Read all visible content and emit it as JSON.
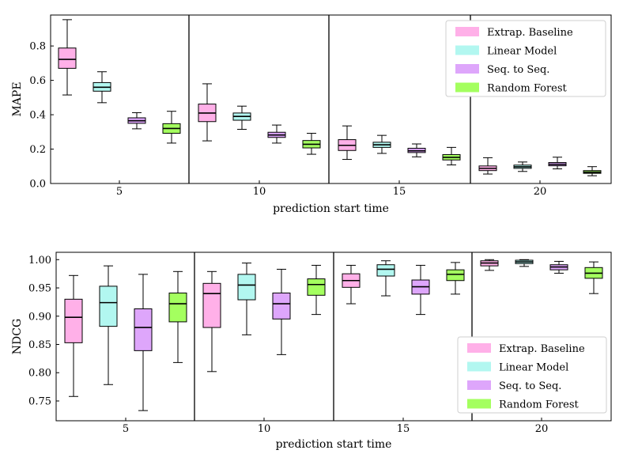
{
  "chart_data": [
    {
      "type": "box",
      "xlabel": "prediction start time",
      "ylabel": "MAPE",
      "ylim": [
        0.0,
        0.98
      ],
      "yticks": [
        0.0,
        0.2,
        0.4,
        0.6,
        0.8
      ],
      "ytick_labels": [
        "0.0",
        "0.2",
        "0.4",
        "0.6",
        "0.8"
      ],
      "groups": [
        "5",
        "10",
        "15",
        "20"
      ],
      "legend": {
        "position": "top-right"
      },
      "series": [
        {
          "name": "Extrap. Baseline",
          "color": "#ffb0e8",
          "boxes": [
            {
              "whislo": 0.515,
              "q1": 0.67,
              "med": 0.722,
              "q3": 0.788,
              "whishi": 0.953
            },
            {
              "whislo": 0.248,
              "q1": 0.36,
              "med": 0.41,
              "q3": 0.462,
              "whishi": 0.58
            },
            {
              "whislo": 0.14,
              "q1": 0.192,
              "med": 0.222,
              "q3": 0.255,
              "whishi": 0.335
            },
            {
              "whislo": 0.055,
              "q1": 0.075,
              "med": 0.088,
              "q3": 0.102,
              "whishi": 0.15
            }
          ]
        },
        {
          "name": "Linear Model",
          "color": "#b2f7f0",
          "boxes": [
            {
              "whislo": 0.47,
              "q1": 0.537,
              "med": 0.56,
              "q3": 0.587,
              "whishi": 0.65
            },
            {
              "whislo": 0.315,
              "q1": 0.368,
              "med": 0.39,
              "q3": 0.41,
              "whishi": 0.45
            },
            {
              "whislo": 0.175,
              "q1": 0.21,
              "med": 0.225,
              "q3": 0.24,
              "whishi": 0.28
            },
            {
              "whislo": 0.07,
              "q1": 0.088,
              "med": 0.097,
              "q3": 0.107,
              "whishi": 0.125
            }
          ]
        },
        {
          "name": "Seq. to Seq.",
          "color": "#dea6fb",
          "boxes": [
            {
              "whislo": 0.318,
              "q1": 0.35,
              "med": 0.365,
              "q3": 0.382,
              "whishi": 0.412
            },
            {
              "whislo": 0.235,
              "q1": 0.268,
              "med": 0.282,
              "q3": 0.298,
              "whishi": 0.34
            },
            {
              "whislo": 0.155,
              "q1": 0.18,
              "med": 0.19,
              "q3": 0.205,
              "whishi": 0.23
            },
            {
              "whislo": 0.085,
              "q1": 0.103,
              "med": 0.112,
              "q3": 0.122,
              "whishi": 0.153
            }
          ]
        },
        {
          "name": "Random Forest",
          "color": "#a4ff5f",
          "boxes": [
            {
              "whislo": 0.235,
              "q1": 0.292,
              "med": 0.32,
              "q3": 0.348,
              "whishi": 0.42
            },
            {
              "whislo": 0.17,
              "q1": 0.207,
              "med": 0.228,
              "q3": 0.25,
              "whishi": 0.292
            },
            {
              "whislo": 0.108,
              "q1": 0.137,
              "med": 0.152,
              "q3": 0.168,
              "whishi": 0.21
            },
            {
              "whislo": 0.045,
              "q1": 0.059,
              "med": 0.066,
              "q3": 0.075,
              "whishi": 0.098
            }
          ]
        }
      ]
    },
    {
      "type": "box",
      "xlabel": "prediction start time",
      "ylabel": "NDCG",
      "ylim": [
        0.715,
        1.013
      ],
      "yticks": [
        0.75,
        0.8,
        0.85,
        0.9,
        0.95,
        1.0
      ],
      "ytick_labels": [
        "0.75",
        "0.80",
        "0.85",
        "0.90",
        "0.95",
        "1.00"
      ],
      "groups": [
        "5",
        "10",
        "15",
        "20"
      ],
      "legend": {
        "position": "lower-right"
      },
      "series": [
        {
          "name": "Extrap. Baseline",
          "color": "#ffb0e8",
          "boxes": [
            {
              "whislo": 0.758,
              "q1": 0.853,
              "med": 0.898,
              "q3": 0.93,
              "whishi": 0.972
            },
            {
              "whislo": 0.802,
              "q1": 0.88,
              "med": 0.94,
              "q3": 0.958,
              "whishi": 0.979
            },
            {
              "whislo": 0.922,
              "q1": 0.951,
              "med": 0.963,
              "q3": 0.975,
              "whishi": 0.99
            },
            {
              "whislo": 0.981,
              "q1": 0.989,
              "med": 0.994,
              "q3": 0.998,
              "whishi": 1.0
            }
          ]
        },
        {
          "name": "Linear Model",
          "color": "#b2f7f0",
          "boxes": [
            {
              "whislo": 0.779,
              "q1": 0.882,
              "med": 0.924,
              "q3": 0.953,
              "whishi": 0.989
            },
            {
              "whislo": 0.867,
              "q1": 0.929,
              "med": 0.955,
              "q3": 0.974,
              "whishi": 0.994
            },
            {
              "whislo": 0.936,
              "q1": 0.971,
              "med": 0.983,
              "q3": 0.991,
              "whishi": 0.998
            },
            {
              "whislo": 0.988,
              "q1": 0.993,
              "med": 0.996,
              "q3": 0.999,
              "whishi": 1.0
            }
          ]
        },
        {
          "name": "Seq. to Seq.",
          "color": "#dea6fb",
          "boxes": [
            {
              "whislo": 0.733,
              "q1": 0.839,
              "med": 0.88,
              "q3": 0.913,
              "whishi": 0.974
            },
            {
              "whislo": 0.832,
              "q1": 0.895,
              "med": 0.922,
              "q3": 0.941,
              "whishi": 0.983
            },
            {
              "whislo": 0.903,
              "q1": 0.939,
              "med": 0.952,
              "q3": 0.964,
              "whishi": 0.99
            },
            {
              "whislo": 0.976,
              "q1": 0.982,
              "med": 0.987,
              "q3": 0.991,
              "whishi": 0.997
            }
          ]
        },
        {
          "name": "Random Forest",
          "color": "#a4ff5f",
          "boxes": [
            {
              "whislo": 0.818,
              "q1": 0.89,
              "med": 0.922,
              "q3": 0.941,
              "whishi": 0.979
            },
            {
              "whislo": 0.903,
              "q1": 0.937,
              "med": 0.956,
              "q3": 0.966,
              "whishi": 0.99
            },
            {
              "whislo": 0.939,
              "q1": 0.963,
              "med": 0.974,
              "q3": 0.982,
              "whishi": 0.995
            },
            {
              "whislo": 0.94,
              "q1": 0.967,
              "med": 0.976,
              "q3": 0.986,
              "whishi": 0.996
            }
          ]
        }
      ]
    }
  ]
}
